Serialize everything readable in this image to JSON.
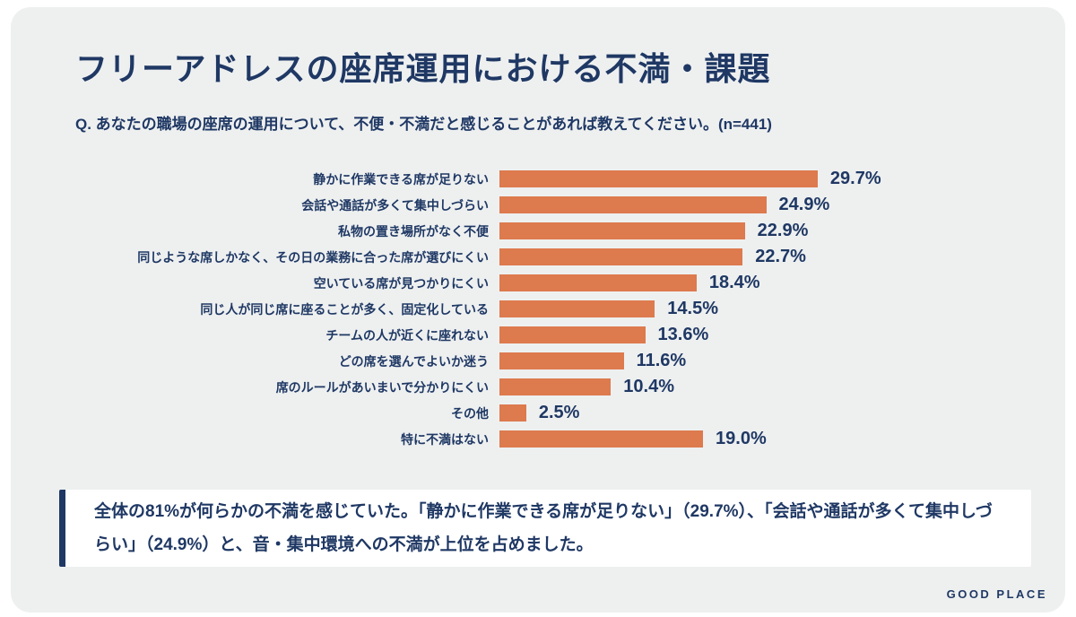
{
  "page": {
    "title": "フリーアドレスの座席運用における不満・課題",
    "question": "Q. あなたの職場の座席の運用について、不便・不満だと感じることがあれば教えてください。(n=441)",
    "footer_logo": "GOOD PLACE"
  },
  "summary": {
    "text": "全体の81%が何らかの不満を感じていた。「静かに作業できる席が足りない」（29.7%）、「会話や通話が多くて集中しづらい」（24.9%）と、音・集中環境への不満が上位を占めました。"
  },
  "colors": {
    "navy_text": "#1f3864",
    "bar_orange": "#dd7a4e",
    "card_background": "#eef0f0",
    "page_background": "#ffffff",
    "summary_background": "#ffffff"
  },
  "chart_data": {
    "type": "bar",
    "orientation": "horizontal",
    "title": "フリーアドレスの座席運用における不満・課題",
    "xlabel": "",
    "ylabel": "",
    "unit": "%",
    "xlim": [
      0,
      30
    ],
    "grid": false,
    "sample_size": "n=441",
    "categories": [
      "静かに作業できる席が足りない",
      "会話や通話が多くて集中しづらい",
      "私物の置き場所がなく不便",
      "同じような席しかなく、その日の業務に合った席が選びにくい",
      "空いている席が見つかりにくい",
      "同じ人が同じ席に座ることが多く、固定化している",
      "チームの人が近くに座れない",
      "どの席を選んでよいか迷う",
      "席のルールがあいまいで分かりにくい",
      "その他",
      "特に不満はない"
    ],
    "values": [
      29.7,
      24.9,
      22.9,
      22.7,
      18.4,
      14.5,
      13.6,
      11.6,
      10.4,
      2.5,
      19.0
    ],
    "value_labels": [
      "29.7%",
      "24.9%",
      "22.9%",
      "22.7%",
      "18.4%",
      "14.5%",
      "13.6%",
      "11.6%",
      "10.4%",
      "2.5%",
      "19.0%"
    ]
  }
}
